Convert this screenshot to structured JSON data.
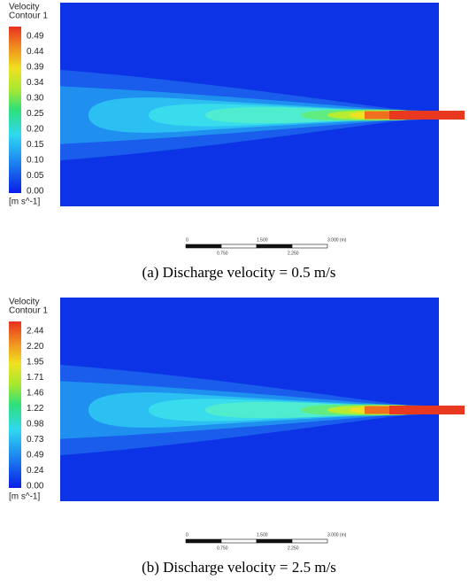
{
  "panels": [
    {
      "legend": {
        "title": "Velocity",
        "subtitle": "Contour 1",
        "labels": [
          "0.49",
          "0.44",
          "0.39",
          "0.34",
          "0.30",
          "0.25",
          "0.20",
          "0.15",
          "0.10",
          "0.05",
          "0.00"
        ],
        "unit": "[m s^-1]"
      },
      "scale_bar": {
        "top_labels": [
          "0",
          "1.500",
          "3.000 (m)"
        ],
        "bottom_labels": [
          "0.750",
          "2.250"
        ]
      },
      "caption": "(a)  Discharge  velocity  =  0.5  m/s"
    },
    {
      "legend": {
        "title": "Velocity",
        "subtitle": "Contour 1",
        "labels": [
          "2.44",
          "2.20",
          "1.95",
          "1.71",
          "1.46",
          "1.22",
          "0.98",
          "0.73",
          "0.49",
          "0.24",
          "0.00"
        ],
        "unit": "[m s^-1]"
      },
      "scale_bar": {
        "top_labels": [
          "0",
          "1.500",
          "3.000 (m)"
        ],
        "bottom_labels": [
          "0.750",
          "2.250"
        ]
      },
      "caption": "(b)  Discharge  velocity  =  2.5  m/s"
    }
  ]
}
